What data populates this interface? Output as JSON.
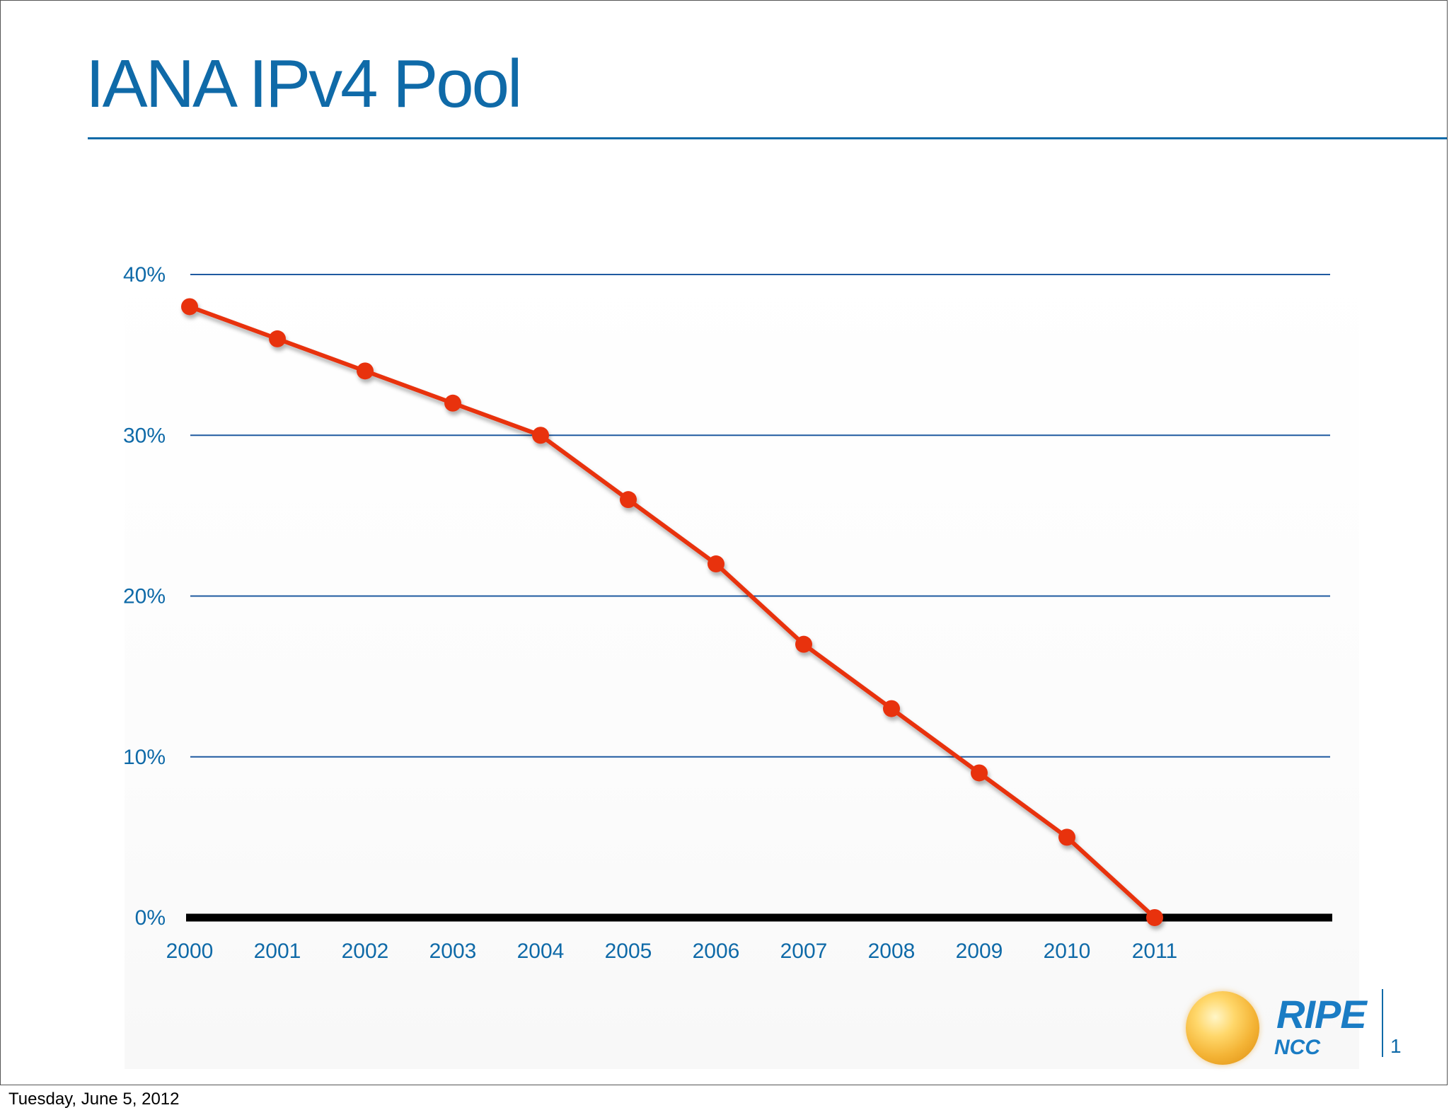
{
  "slide": {
    "title": "IANA IPv4 Pool",
    "page_number": "1",
    "footer_date": "Tuesday, June 5, 2012",
    "logo": {
      "name": "RIPE",
      "sub": "NCC"
    }
  },
  "chart_data": {
    "type": "line",
    "title": "",
    "xlabel": "",
    "ylabel": "",
    "categories": [
      "2000",
      "2001",
      "2002",
      "2003",
      "2004",
      "2005",
      "2006",
      "2007",
      "2008",
      "2009",
      "2010",
      "2011"
    ],
    "series": [
      {
        "name": "IANA IPv4 Pool",
        "values": [
          38,
          36,
          34,
          32,
          30,
          26,
          22,
          17,
          13,
          9,
          5,
          0
        ]
      }
    ],
    "y_ticks": [
      {
        "value": 0,
        "label": "0%"
      },
      {
        "value": 10,
        "label": "10%"
      },
      {
        "value": 20,
        "label": "20%"
      },
      {
        "value": 30,
        "label": "30%"
      },
      {
        "value": 40,
        "label": "40%"
      }
    ],
    "ylim": [
      0,
      40
    ],
    "grid": true,
    "colors": {
      "line": "#e8300f",
      "grid": "#1f5aa0",
      "axis": "#000000",
      "text": "#0f6aa8"
    }
  }
}
